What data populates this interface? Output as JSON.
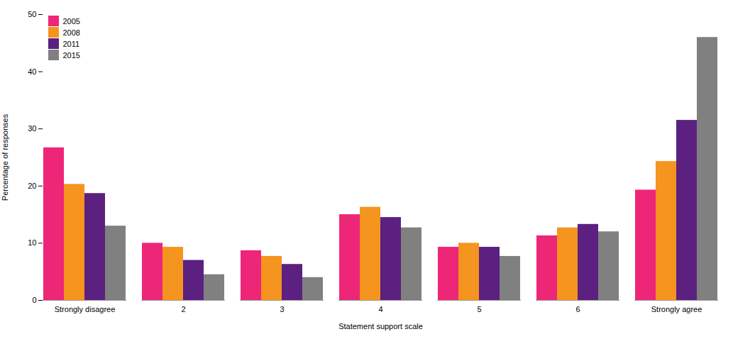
{
  "chart_data": {
    "type": "bar",
    "xlabel": "Statement support scale",
    "ylabel": "Percentage of responses",
    "categories": [
      "Strongly disagree",
      "2",
      "3",
      "4",
      "5",
      "6",
      "Strongly agree"
    ],
    "series": [
      {
        "name": "2005",
        "color": "#EE2677",
        "values": [
          26.7,
          10.0,
          8.7,
          15.0,
          9.3,
          11.3,
          19.3
        ]
      },
      {
        "name": "2008",
        "color": "#F5941E",
        "values": [
          20.3,
          9.3,
          7.7,
          16.3,
          10.0,
          12.7,
          24.3
        ]
      },
      {
        "name": "2011",
        "color": "#5B2080",
        "values": [
          18.7,
          7.0,
          6.3,
          14.5,
          9.3,
          13.3,
          31.5
        ]
      },
      {
        "name": "2015",
        "color": "#808080",
        "values": [
          13.0,
          4.5,
          4.0,
          12.7,
          7.7,
          12.0,
          46.0
        ]
      }
    ],
    "ylim": [
      0,
      50
    ],
    "yticks": [
      0,
      10,
      20,
      30,
      40,
      50
    ],
    "grid": false,
    "legend": "upper left"
  }
}
